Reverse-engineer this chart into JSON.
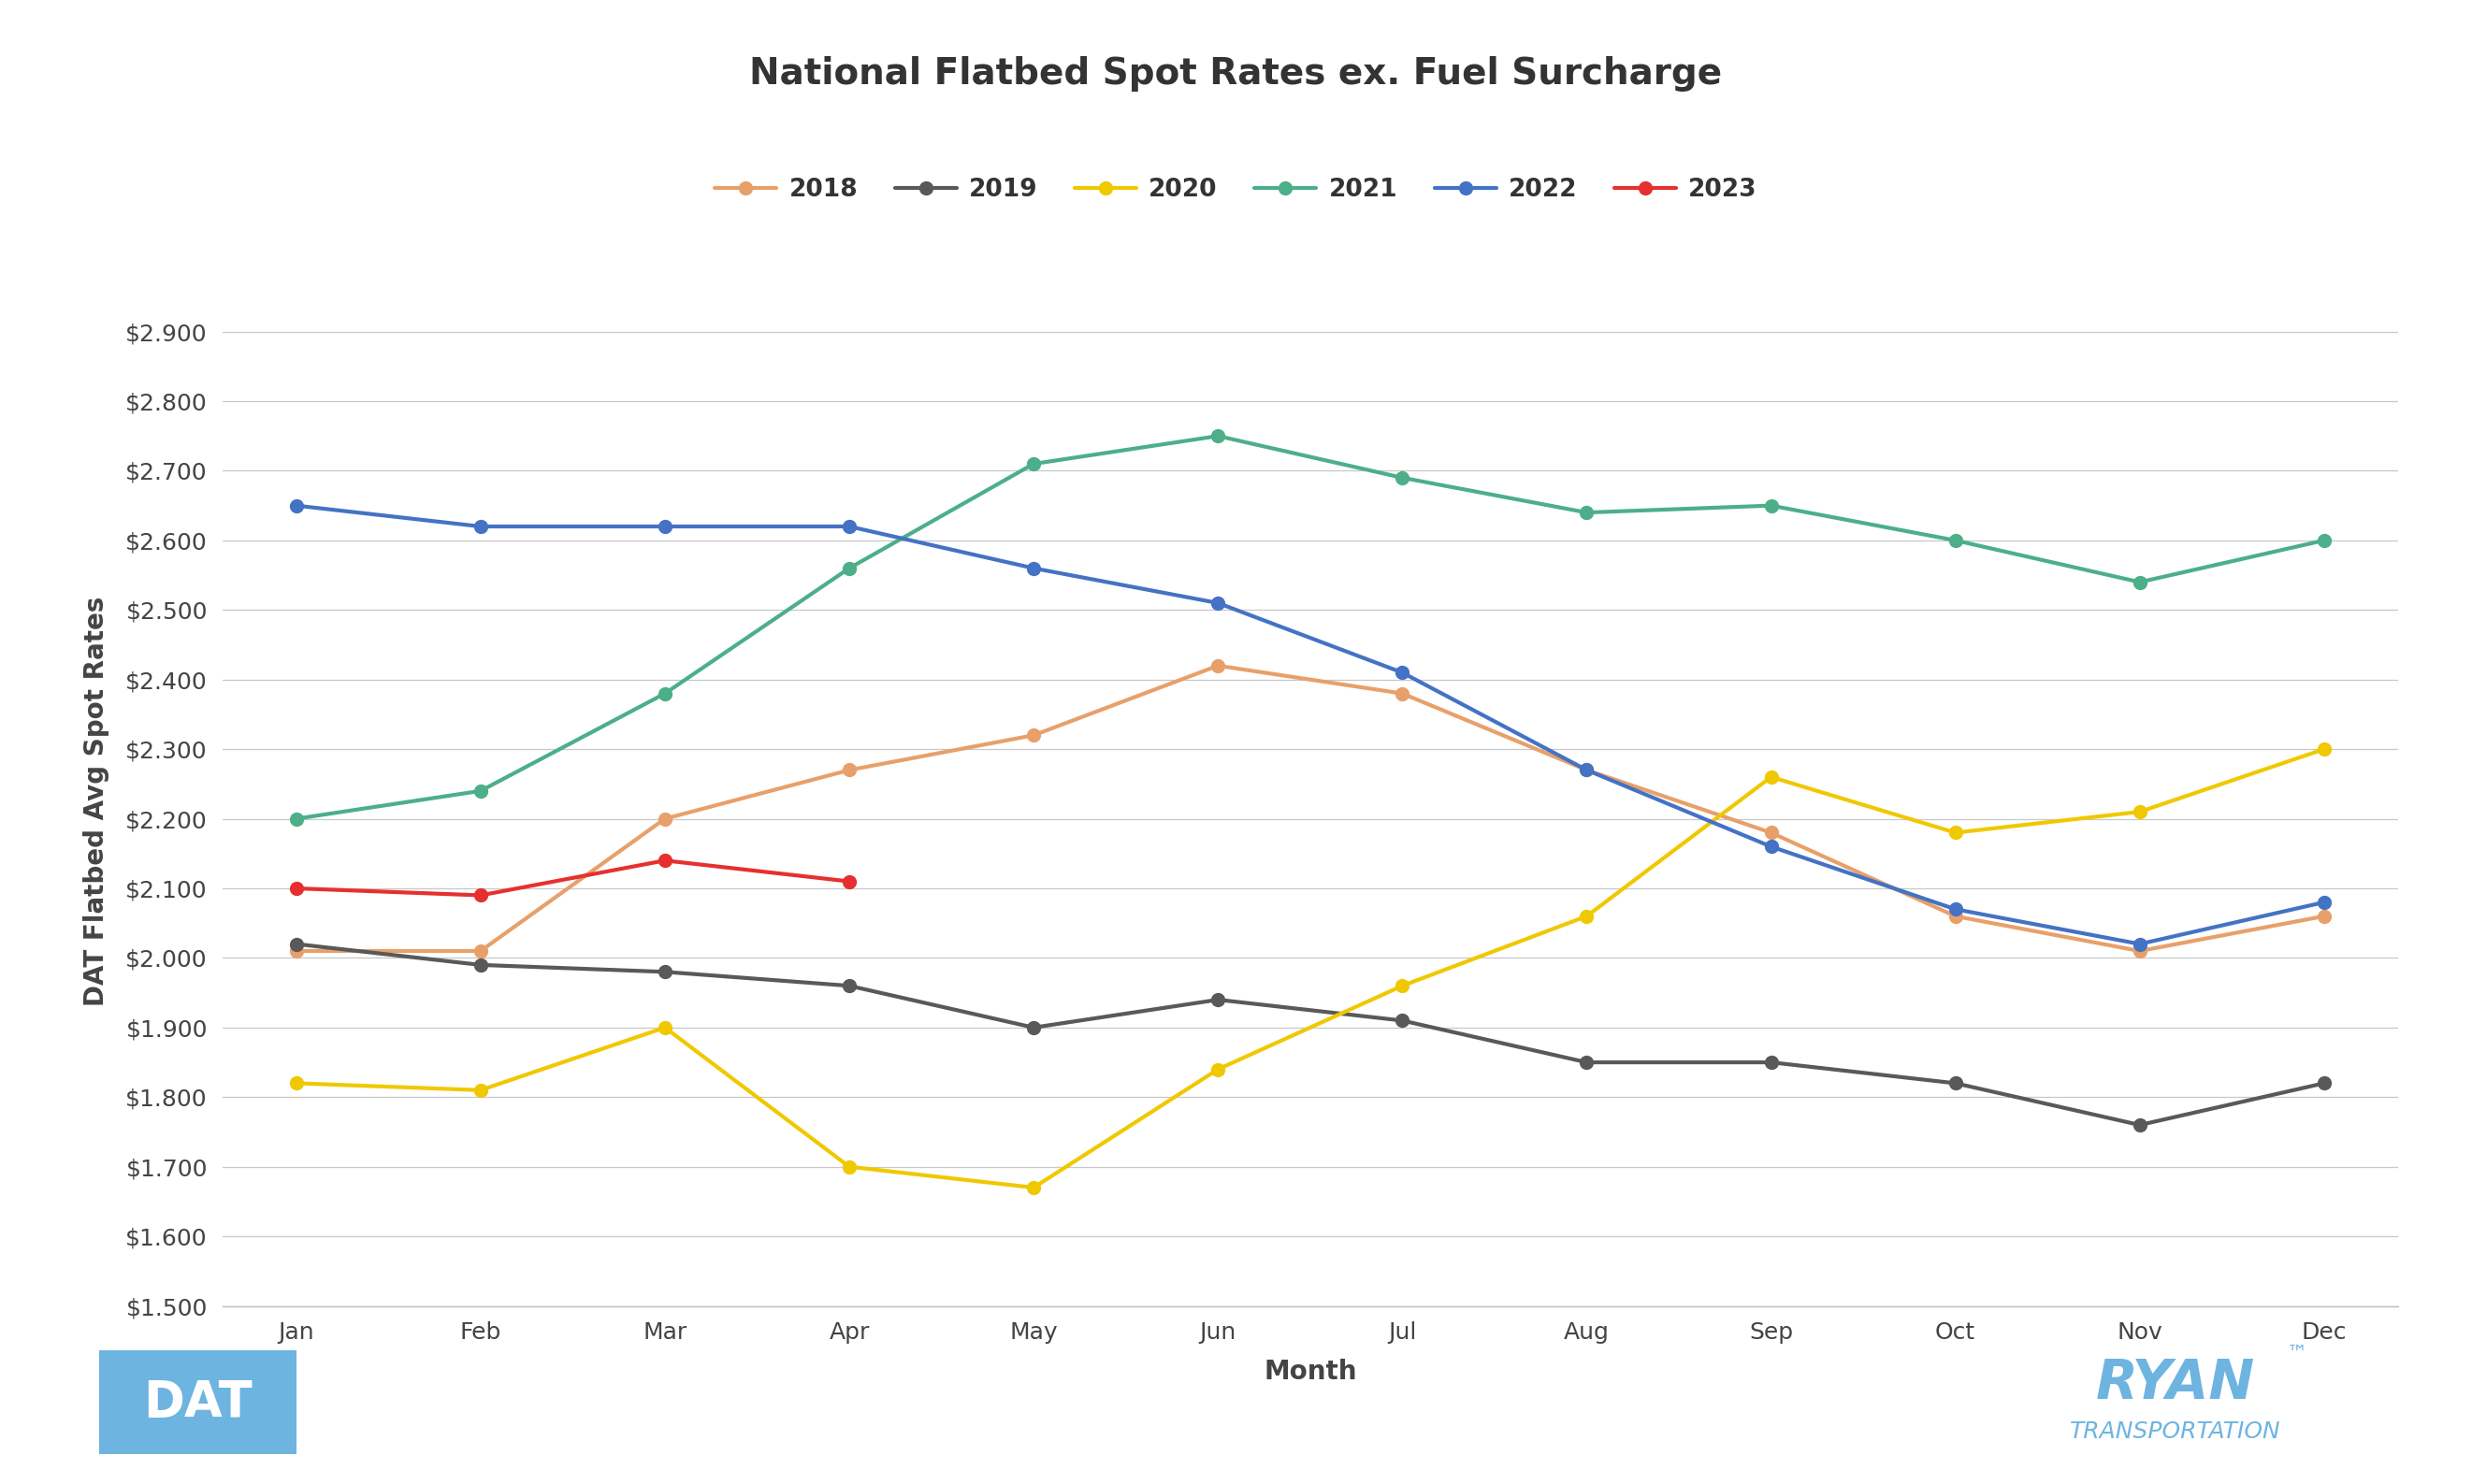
{
  "title": "National Flatbed Spot Rates ex. Fuel Surcharge",
  "xlabel": "Month",
  "ylabel": "DAT Flatbed Avg Spot Rates",
  "months": [
    "Jan",
    "Feb",
    "Mar",
    "Apr",
    "May",
    "Jun",
    "Jul",
    "Aug",
    "Sep",
    "Oct",
    "Nov",
    "Dec"
  ],
  "ylim_low": 1.5,
  "ylim_high": 2.95,
  "ytick_values": [
    1.5,
    1.6,
    1.7,
    1.8,
    1.9,
    2.0,
    2.1,
    2.2,
    2.3,
    2.4,
    2.5,
    2.6,
    2.7,
    2.8,
    2.9
  ],
  "series_2018_values": [
    2.01,
    2.01,
    2.2,
    2.27,
    2.32,
    2.42,
    2.38,
    2.27,
    2.18,
    2.06,
    2.01,
    2.06
  ],
  "series_2018_color": "#E8A06A",
  "series_2019_values": [
    2.02,
    1.99,
    1.98,
    1.96,
    1.9,
    1.94,
    1.91,
    1.85,
    1.85,
    1.82,
    1.76,
    1.82
  ],
  "series_2019_color": "#595959",
  "series_2020_values": [
    1.82,
    1.81,
    1.9,
    1.7,
    1.67,
    1.84,
    1.96,
    2.06,
    2.26,
    2.18,
    2.21,
    2.3
  ],
  "series_2020_color": "#F0C800",
  "series_2021_values": [
    2.2,
    2.24,
    2.38,
    2.56,
    2.71,
    2.75,
    2.69,
    2.64,
    2.65,
    2.6,
    2.54,
    2.6
  ],
  "series_2021_color": "#4CAF8A",
  "series_2022_values": [
    2.65,
    2.62,
    2.62,
    2.62,
    2.56,
    2.51,
    2.41,
    2.27,
    2.16,
    2.07,
    2.02,
    2.08
  ],
  "series_2022_color": "#4472C4",
  "series_2023_values": [
    2.1,
    2.09,
    2.14,
    2.11
  ],
  "series_2023_color": "#E63030",
  "background_color": "#FFFFFF",
  "grid_color": "#C8C8C8",
  "title_fontsize": 28,
  "label_fontsize": 20,
  "tick_fontsize": 18,
  "legend_fontsize": 19,
  "line_width": 3.0,
  "marker_size": 10,
  "dat_logo_color": "#6EB4E0",
  "ryan_color": "#6EB4E0"
}
